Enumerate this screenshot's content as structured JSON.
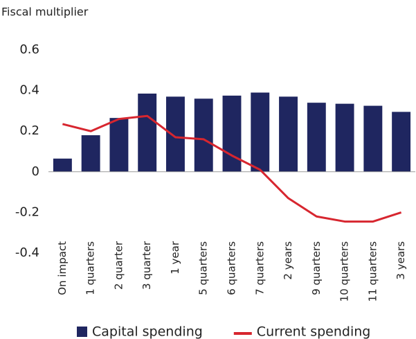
{
  "chart_data": {
    "type": "bar",
    "ylabel": "Fiscal multiplier",
    "categories": [
      "On impact",
      "1 quarters",
      "2 quarter",
      "3 quarter",
      "1 year",
      "5 quarters",
      "6 quarters",
      "7 quarters",
      "2 years",
      "9 quarters",
      "10 quarters",
      "11 quarters",
      "3 years"
    ],
    "series": [
      {
        "name": "Capital spending",
        "type": "bar",
        "color": "#1f2660",
        "values": [
          0.065,
          0.18,
          0.265,
          0.385,
          0.37,
          0.36,
          0.375,
          0.39,
          0.37,
          0.34,
          0.335,
          0.325,
          0.295
        ]
      },
      {
        "name": "Current spending",
        "type": "line",
        "color": "#d7262f",
        "values": [
          0.235,
          0.2,
          0.26,
          0.275,
          0.17,
          0.16,
          0.08,
          0.01,
          -0.13,
          -0.22,
          -0.245,
          -0.245,
          -0.2
        ]
      }
    ],
    "ylim": [
      -0.4,
      0.6
    ],
    "yticks": [
      0.6,
      0.4,
      0.2,
      0,
      -0.2,
      -0.4
    ],
    "grid": false,
    "legend": "bottom"
  }
}
